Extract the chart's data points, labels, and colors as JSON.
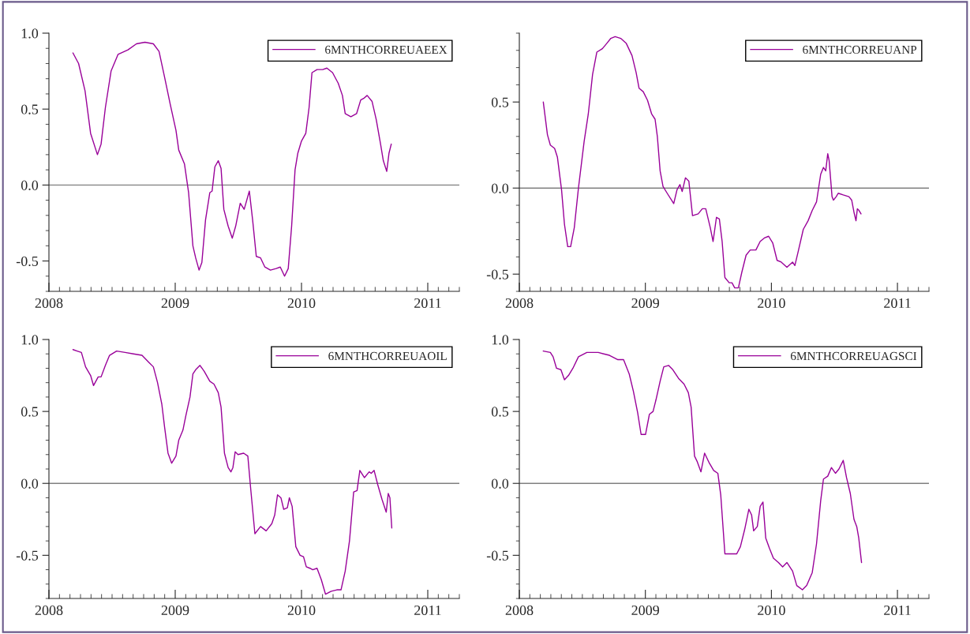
{
  "chart_data": [
    {
      "type": "line",
      "xlim": [
        2008,
        2011.25
      ],
      "xticks": [
        2008,
        2009,
        2010,
        2011
      ],
      "ylim": [
        -0.7,
        1.0
      ],
      "yticks": [
        {
          "value": -0.5,
          "label": "-0.5"
        },
        {
          "value": 0.0,
          "label": "0.0"
        },
        {
          "value": 0.5,
          "label": "0.5"
        },
        {
          "value": 1.0,
          "label": "1.0"
        }
      ],
      "legend": "top right",
      "grid": false,
      "ref_lines": [
        {
          "axis": "y",
          "value": 0,
          "color": "#808080"
        }
      ],
      "series": [
        {
          "name": "6MNTHCORREUAEEX",
          "color": "#990099",
          "x": [
            2008.19,
            2008.235,
            2008.286,
            2008.33,
            2008.384,
            2008.413,
            2008.447,
            2008.492,
            2008.547,
            2008.626,
            2008.693,
            2008.76,
            2008.827,
            2008.872,
            2008.916,
            2008.961,
            2009.006,
            2009.028,
            2009.073,
            2009.106,
            2009.14,
            2009.162,
            2009.189,
            2009.211,
            2009.24,
            2009.274,
            2009.292,
            2009.314,
            2009.341,
            2009.363,
            2009.385,
            2009.419,
            2009.452,
            2009.479,
            2009.515,
            2009.546,
            2009.587,
            2009.613,
            2009.642,
            2009.676,
            2009.71,
            2009.754,
            2009.799,
            2009.832,
            2009.866,
            2009.895,
            2009.922,
            2009.949,
            2009.971,
            2010.0,
            2010.034,
            2010.06,
            2010.083,
            2010.123,
            2010.168,
            2010.201,
            2010.246,
            2010.291,
            2010.324,
            2010.346,
            2010.391,
            2010.436,
            2010.469,
            2010.492,
            2010.52,
            2010.559,
            2010.592,
            2010.626,
            2010.648,
            2010.675,
            2010.693,
            2010.711
          ],
          "values": [
            0.87,
            0.8,
            0.62,
            0.34,
            0.2,
            0.27,
            0.51,
            0.75,
            0.86,
            0.89,
            0.93,
            0.94,
            0.93,
            0.88,
            0.71,
            0.53,
            0.36,
            0.23,
            0.14,
            -0.05,
            -0.4,
            -0.48,
            -0.56,
            -0.51,
            -0.23,
            -0.05,
            -0.04,
            0.12,
            0.16,
            0.11,
            -0.16,
            -0.27,
            -0.35,
            -0.27,
            -0.12,
            -0.16,
            -0.04,
            -0.23,
            -0.47,
            -0.48,
            -0.54,
            -0.56,
            -0.55,
            -0.54,
            -0.6,
            -0.55,
            -0.27,
            0.1,
            0.21,
            0.29,
            0.34,
            0.51,
            0.74,
            0.76,
            0.76,
            0.77,
            0.74,
            0.67,
            0.59,
            0.47,
            0.45,
            0.47,
            0.56,
            0.57,
            0.59,
            0.55,
            0.43,
            0.27,
            0.16,
            0.09,
            0.21,
            0.27
          ]
        }
      ]
    },
    {
      "type": "line",
      "xlim": [
        2008,
        2011.25
      ],
      "xticks": [
        2008,
        2009,
        2010,
        2011
      ],
      "ylim": [
        -0.6,
        0.9
      ],
      "yticks": [
        {
          "value": -0.5,
          "label": "-0.5"
        },
        {
          "value": 0.0,
          "label": "0.0"
        },
        {
          "value": 0.5,
          "label": "0.5"
        }
      ],
      "legend": "top right",
      "grid": false,
      "ref_lines": [
        {
          "axis": "y",
          "value": 0,
          "color": "#808080"
        }
      ],
      "series": [
        {
          "name": "6MNTHCORREUANP",
          "color": "#990099",
          "x": [
            2008.19,
            2008.223,
            2008.246,
            2008.28,
            2008.302,
            2008.335,
            2008.358,
            2008.384,
            2008.407,
            2008.436,
            2008.469,
            2008.514,
            2008.547,
            2008.581,
            2008.615,
            2008.659,
            2008.693,
            2008.726,
            2008.76,
            2008.804,
            2008.849,
            2008.894,
            2008.927,
            2008.95,
            2008.983,
            2009.017,
            2009.05,
            2009.077,
            2009.095,
            2009.117,
            2009.14,
            2009.173,
            2009.225,
            2009.251,
            2009.274,
            2009.292,
            2009.318,
            2009.345,
            2009.374,
            2009.419,
            2009.452,
            2009.479,
            2009.515,
            2009.537,
            2009.564,
            2009.587,
            2009.609,
            2009.631,
            2009.665,
            2009.687,
            2009.709,
            2009.738,
            2009.765,
            2009.799,
            2009.832,
            2009.877,
            2009.911,
            2009.944,
            2009.978,
            2010.011,
            2010.045,
            2010.078,
            2010.123,
            2010.168,
            2010.186,
            2010.212,
            2010.253,
            2010.291,
            2010.324,
            2010.358,
            2010.391,
            2010.413,
            2010.431,
            2010.447,
            2010.458,
            2010.481,
            2010.492,
            2010.514,
            2010.53,
            2010.57,
            2010.615,
            2010.637,
            2010.655,
            2010.671,
            2010.682,
            2010.695,
            2010.711
          ],
          "values": [
            0.5,
            0.31,
            0.25,
            0.23,
            0.18,
            -0.01,
            -0.21,
            -0.34,
            -0.34,
            -0.23,
            0.0,
            0.27,
            0.43,
            0.66,
            0.79,
            0.81,
            0.84,
            0.87,
            0.88,
            0.87,
            0.84,
            0.77,
            0.67,
            0.58,
            0.56,
            0.51,
            0.43,
            0.4,
            0.3,
            0.1,
            0.01,
            -0.03,
            -0.09,
            -0.01,
            0.02,
            -0.02,
            0.06,
            0.04,
            -0.16,
            -0.15,
            -0.12,
            -0.12,
            -0.23,
            -0.31,
            -0.17,
            -0.18,
            -0.31,
            -0.52,
            -0.55,
            -0.55,
            -0.58,
            -0.58,
            -0.49,
            -0.39,
            -0.36,
            -0.36,
            -0.31,
            -0.29,
            -0.28,
            -0.32,
            -0.42,
            -0.43,
            -0.46,
            -0.43,
            -0.45,
            -0.37,
            -0.24,
            -0.19,
            -0.13,
            -0.08,
            0.08,
            0.12,
            0.1,
            0.2,
            0.16,
            -0.05,
            -0.07,
            -0.05,
            -0.03,
            -0.04,
            -0.05,
            -0.07,
            -0.14,
            -0.19,
            -0.12,
            -0.13,
            -0.15
          ]
        }
      ]
    },
    {
      "type": "line",
      "xlim": [
        2008,
        2011.25
      ],
      "xticks": [
        2008,
        2009,
        2010,
        2011
      ],
      "ylim": [
        -0.8,
        1.0
      ],
      "yticks": [
        {
          "value": -0.5,
          "label": "-0.5"
        },
        {
          "value": 0.0,
          "label": "0.0"
        },
        {
          "value": 0.5,
          "label": "0.5"
        },
        {
          "value": 1.0,
          "label": "1.0"
        }
      ],
      "legend": "top right",
      "grid": false,
      "ref_lines": [
        {
          "axis": "y",
          "value": 0,
          "color": "#808080"
        }
      ],
      "series": [
        {
          "name": "6MNTHCORREUAOIL",
          "color": "#990099",
          "x": [
            2008.19,
            2008.223,
            2008.257,
            2008.29,
            2008.33,
            2008.353,
            2008.39,
            2008.413,
            2008.447,
            2008.48,
            2008.536,
            2008.603,
            2008.67,
            2008.737,
            2008.793,
            2008.827,
            2008.86,
            2008.894,
            2008.916,
            2008.943,
            2008.972,
            2009.006,
            2009.028,
            2009.061,
            2009.084,
            2009.117,
            2009.14,
            2009.162,
            2009.196,
            2009.229,
            2009.274,
            2009.307,
            2009.341,
            2009.363,
            2009.39,
            2009.419,
            2009.441,
            2009.457,
            2009.475,
            2009.497,
            2009.542,
            2009.575,
            2009.598,
            2009.631,
            2009.676,
            2009.72,
            2009.765,
            2009.788,
            2009.81,
            2009.837,
            2009.859,
            2009.888,
            2009.904,
            2009.926,
            2009.955,
            2009.989,
            2010.016,
            2010.038,
            2010.067,
            2010.089,
            2010.123,
            2010.157,
            2010.19,
            2010.235,
            2010.28,
            2010.313,
            2010.346,
            2010.38,
            2010.413,
            2010.44,
            2010.462,
            2010.498,
            2010.536,
            2010.552,
            2010.575,
            2010.604,
            2010.637,
            2010.671,
            2010.687,
            2010.7,
            2010.715
          ],
          "values": [
            0.93,
            0.92,
            0.91,
            0.81,
            0.75,
            0.68,
            0.74,
            0.74,
            0.82,
            0.89,
            0.92,
            0.91,
            0.9,
            0.89,
            0.84,
            0.81,
            0.7,
            0.55,
            0.39,
            0.21,
            0.14,
            0.19,
            0.3,
            0.37,
            0.47,
            0.6,
            0.76,
            0.79,
            0.82,
            0.78,
            0.71,
            0.69,
            0.63,
            0.53,
            0.21,
            0.11,
            0.08,
            0.11,
            0.22,
            0.2,
            0.21,
            0.19,
            -0.04,
            -0.35,
            -0.3,
            -0.33,
            -0.28,
            -0.22,
            -0.08,
            -0.1,
            -0.18,
            -0.17,
            -0.1,
            -0.16,
            -0.44,
            -0.5,
            -0.51,
            -0.58,
            -0.59,
            -0.6,
            -0.59,
            -0.67,
            -0.77,
            -0.75,
            -0.74,
            -0.74,
            -0.61,
            -0.4,
            -0.06,
            -0.05,
            0.09,
            0.04,
            0.08,
            0.07,
            0.09,
            -0.01,
            -0.11,
            -0.2,
            -0.07,
            -0.1,
            -0.31
          ]
        }
      ]
    },
    {
      "type": "line",
      "xlim": [
        2008,
        2011.25
      ],
      "xticks": [
        2008,
        2009,
        2010,
        2011
      ],
      "ylim": [
        -0.8,
        1.0
      ],
      "yticks": [
        {
          "value": -0.5,
          "label": "-0.5"
        },
        {
          "value": 0.0,
          "label": "0.0"
        },
        {
          "value": 0.5,
          "label": "0.5"
        },
        {
          "value": 1.0,
          "label": "1.0"
        }
      ],
      "legend": "top right",
      "grid": false,
      "ref_lines": [
        {
          "axis": "y",
          "value": 0,
          "color": "#808080"
        }
      ],
      "series": [
        {
          "name": "6MNTHCORREUAGSCI",
          "color": "#990099",
          "x": [
            2008.19,
            2008.246,
            2008.268,
            2008.295,
            2008.33,
            2008.358,
            2008.39,
            2008.425,
            2008.469,
            2008.536,
            2008.626,
            2008.715,
            2008.782,
            2008.827,
            2008.872,
            2008.905,
            2008.939,
            2008.966,
            2009.001,
            2009.032,
            2009.061,
            2009.084,
            2009.117,
            2009.146,
            2009.184,
            2009.218,
            2009.263,
            2009.307,
            2009.341,
            2009.363,
            2009.39,
            2009.412,
            2009.441,
            2009.47,
            2009.508,
            2009.542,
            2009.575,
            2009.598,
            2009.631,
            2009.676,
            2009.725,
            2009.754,
            2009.788,
            2009.821,
            2009.843,
            2009.859,
            2009.888,
            2009.911,
            2009.933,
            2009.955,
            2009.984,
            2010.016,
            2010.056,
            2010.089,
            2010.123,
            2010.168,
            2010.201,
            2010.246,
            2010.28,
            2010.324,
            2010.358,
            2010.391,
            2010.413,
            2010.447,
            2010.476,
            2010.508,
            2010.536,
            2010.57,
            2010.596,
            2010.626,
            2010.655,
            2010.677,
            2010.693,
            2010.715
          ],
          "values": [
            0.92,
            0.91,
            0.88,
            0.8,
            0.79,
            0.72,
            0.75,
            0.8,
            0.88,
            0.91,
            0.91,
            0.89,
            0.86,
            0.86,
            0.76,
            0.64,
            0.49,
            0.34,
            0.34,
            0.48,
            0.5,
            0.58,
            0.71,
            0.81,
            0.82,
            0.79,
            0.73,
            0.69,
            0.63,
            0.53,
            0.19,
            0.15,
            0.08,
            0.21,
            0.14,
            0.09,
            0.07,
            -0.08,
            -0.49,
            -0.49,
            -0.49,
            -0.44,
            -0.32,
            -0.18,
            -0.22,
            -0.33,
            -0.3,
            -0.16,
            -0.13,
            -0.38,
            -0.45,
            -0.52,
            -0.55,
            -0.58,
            -0.55,
            -0.61,
            -0.71,
            -0.74,
            -0.71,
            -0.62,
            -0.42,
            -0.12,
            0.03,
            0.05,
            0.11,
            0.07,
            0.1,
            0.16,
            0.04,
            -0.07,
            -0.25,
            -0.3,
            -0.38,
            -0.55
          ]
        }
      ]
    }
  ]
}
